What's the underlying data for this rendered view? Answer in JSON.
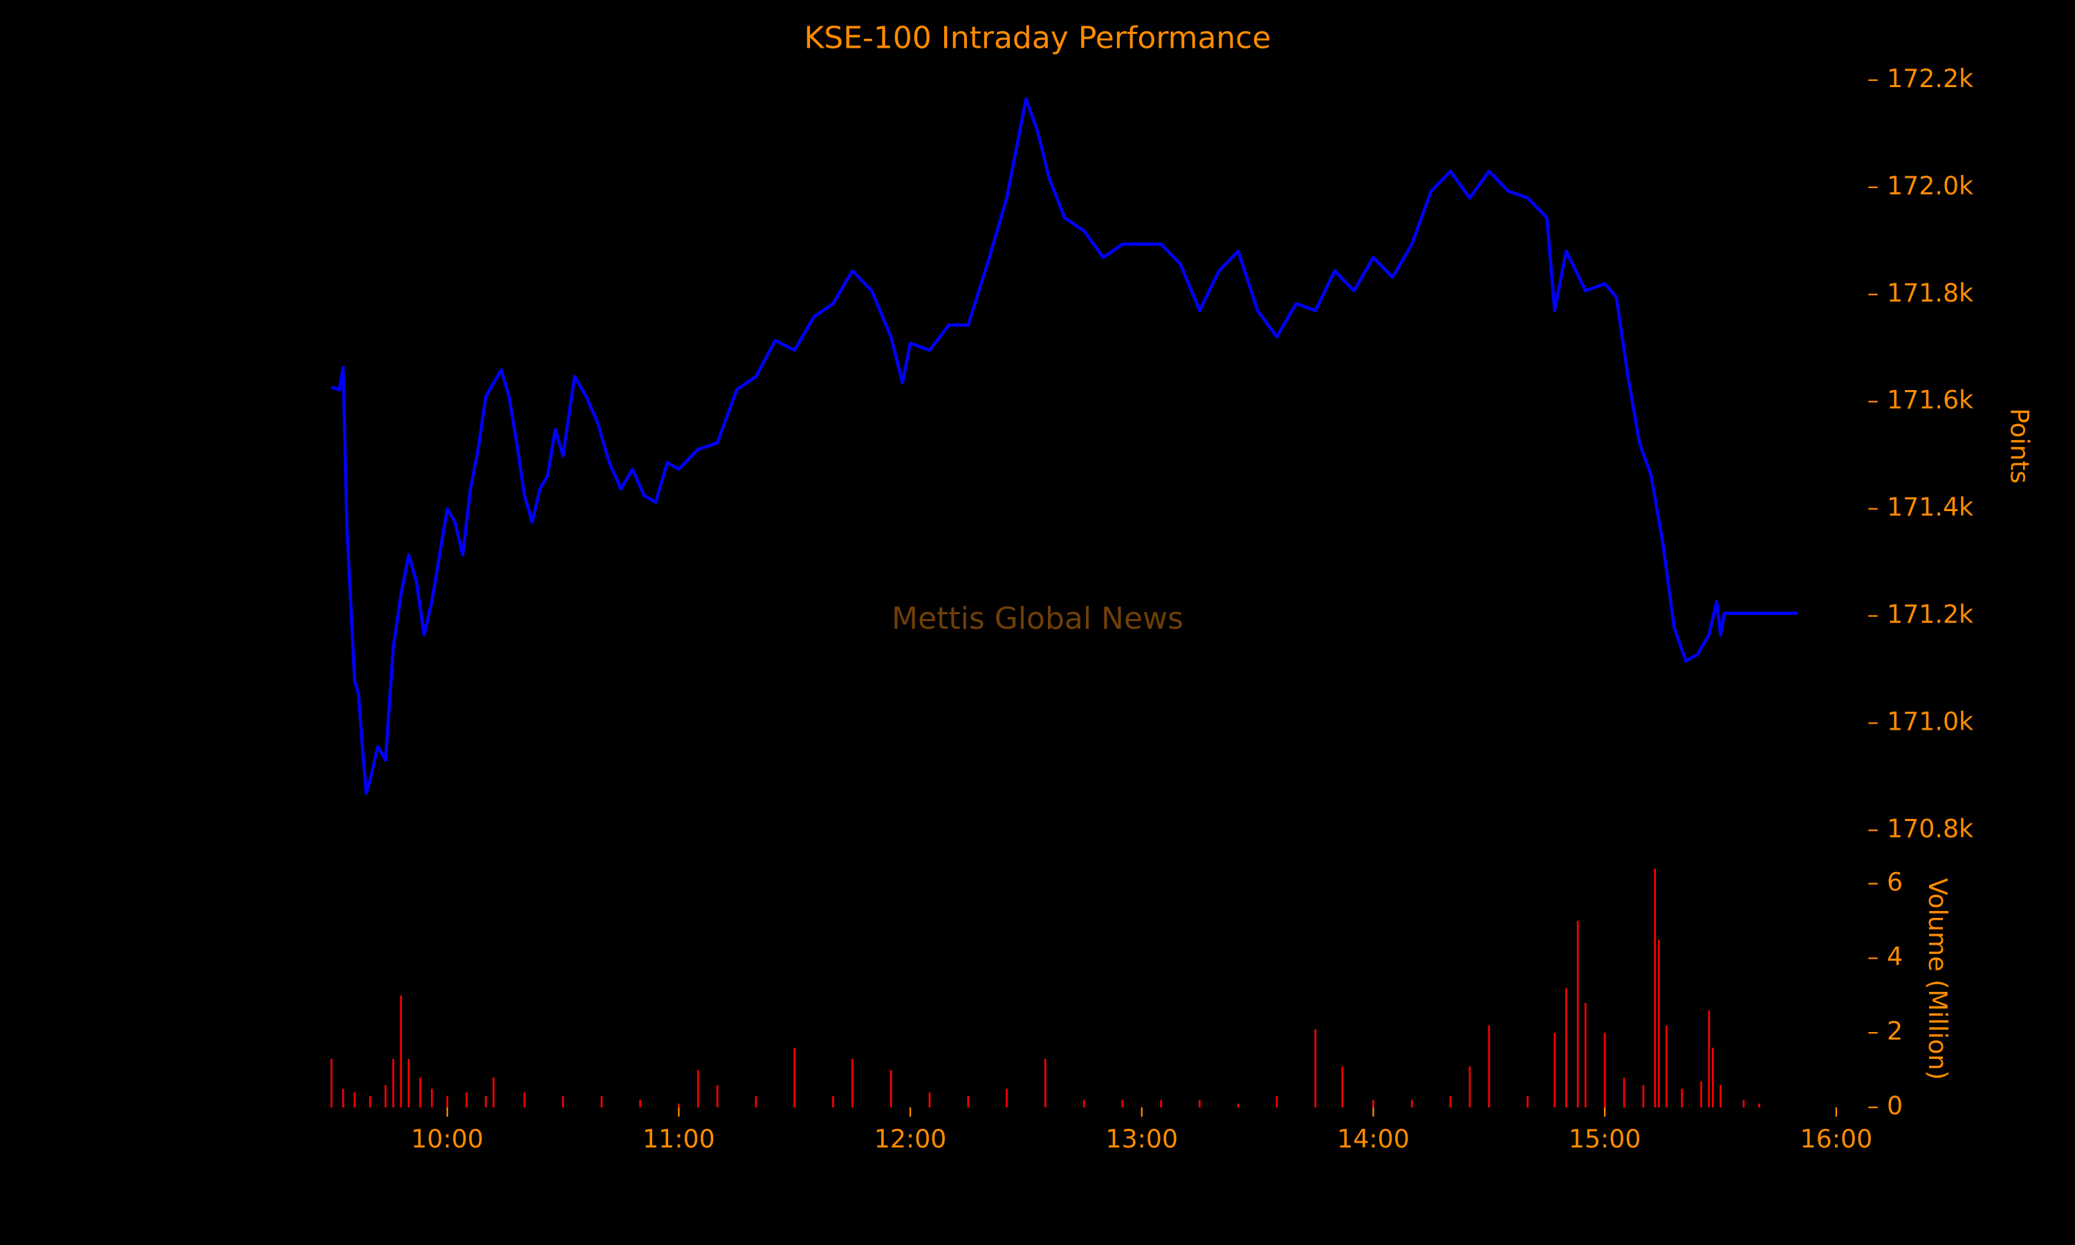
{
  "chart_data": [
    {
      "type": "line",
      "title": "KSE-100 Intraday Performance",
      "ylabel": "Points",
      "watermark": "Mettis Global News",
      "color": "#0000ff",
      "xlim": [
        "09:11",
        "16:09"
      ],
      "ylim": [
        170794,
        172236
      ],
      "yticks": [
        {
          "value": 170800,
          "label": "170.8k"
        },
        {
          "value": 171000,
          "label": "171.0k"
        },
        {
          "value": 171200,
          "label": "171.2k"
        },
        {
          "value": 171400,
          "label": "171.4k"
        },
        {
          "value": 171600,
          "label": "171.6k"
        },
        {
          "value": 171800,
          "label": "171.8k"
        },
        {
          "value": 172000,
          "label": "172.0k"
        },
        {
          "value": 172200,
          "label": "172.2k"
        }
      ],
      "x": [
        "09:30",
        "09:32",
        "09:33",
        "09:34",
        "09:36",
        "09:37",
        "09:38",
        "09:39",
        "09:40",
        "09:42",
        "09:44",
        "09:46",
        "09:48",
        "09:50",
        "09:52",
        "09:54",
        "09:56",
        "09:58",
        "10:00",
        "10:02",
        "10:04",
        "10:06",
        "10:08",
        "10:10",
        "10:12",
        "10:14",
        "10:16",
        "10:18",
        "10:20",
        "10:22",
        "10:24",
        "10:26",
        "10:28",
        "10:30",
        "10:33",
        "10:36",
        "10:39",
        "10:42",
        "10:45",
        "10:48",
        "10:51",
        "10:54",
        "10:57",
        "11:00",
        "11:05",
        "11:10",
        "11:15",
        "11:20",
        "11:25",
        "11:30",
        "11:35",
        "11:40",
        "11:45",
        "11:50",
        "11:55",
        "11:58",
        "12:00",
        "12:05",
        "12:10",
        "12:15",
        "12:20",
        "12:25",
        "12:30",
        "12:33",
        "12:36",
        "12:40",
        "12:45",
        "12:50",
        "12:55",
        "13:00",
        "13:05",
        "13:10",
        "13:15",
        "13:20",
        "13:25",
        "13:30",
        "13:35",
        "13:40",
        "13:45",
        "13:50",
        "13:55",
        "14:00",
        "14:05",
        "14:10",
        "14:15",
        "14:20",
        "14:25",
        "14:30",
        "14:35",
        "14:40",
        "14:45",
        "14:47",
        "14:50",
        "14:55",
        "15:00",
        "15:03",
        "15:06",
        "15:09",
        "15:12",
        "15:15",
        "15:18",
        "15:21",
        "15:24",
        "15:27",
        "15:29",
        "15:30",
        "15:31",
        "15:50"
      ],
      "values": [
        171627,
        171622,
        171664,
        171363,
        171079,
        171054,
        170956,
        170869,
        170894,
        170956,
        170931,
        171141,
        171240,
        171314,
        171264,
        171165,
        171227,
        171314,
        171400,
        171375,
        171314,
        171437,
        171511,
        171610,
        171635,
        171659,
        171610,
        171523,
        171425,
        171375,
        171437,
        171462,
        171548,
        171499,
        171647,
        171610,
        171560,
        171486,
        171437,
        171474,
        171425,
        171412,
        171486,
        171474,
        171511,
        171523,
        171622,
        171647,
        171714,
        171696,
        171758,
        171783,
        171844,
        171807,
        171721,
        171635,
        171709,
        171696,
        171743,
        171743,
        171857,
        171980,
        172165,
        172104,
        172017,
        171943,
        171919,
        171869,
        171894,
        171894,
        171894,
        171857,
        171770,
        171844,
        171881,
        171770,
        171721,
        171783,
        171770,
        171844,
        171807,
        171869,
        171832,
        171894,
        171993,
        172030,
        171980,
        172030,
        171993,
        171980,
        171943,
        171770,
        171881,
        171807,
        171820,
        171795,
        171647,
        171523,
        171462,
        171338,
        171178,
        171116,
        171128,
        171165,
        171227,
        171165,
        171205,
        171205
      ]
    },
    {
      "type": "bar",
      "ylabel": "Volume (Million)",
      "color": "#ff0000",
      "xlim": [
        "09:11",
        "16:09"
      ],
      "xticks": [
        "10:00",
        "11:00",
        "12:00",
        "13:00",
        "14:00",
        "15:00",
        "16:00"
      ],
      "ylim": [
        0,
        6.6
      ],
      "yticks": [
        0,
        2,
        4,
        6
      ],
      "x": [
        "09:30",
        "09:33",
        "09:36",
        "09:40",
        "09:44",
        "09:46",
        "09:48",
        "09:50",
        "09:53",
        "09:56",
        "10:00",
        "10:05",
        "10:10",
        "10:12",
        "10:20",
        "10:30",
        "10:40",
        "10:50",
        "11:00",
        "11:05",
        "11:10",
        "11:20",
        "11:30",
        "11:40",
        "11:45",
        "11:55",
        "12:05",
        "12:15",
        "12:25",
        "12:35",
        "12:45",
        "12:55",
        "13:05",
        "13:15",
        "13:25",
        "13:35",
        "13:45",
        "13:52",
        "14:00",
        "14:10",
        "14:20",
        "14:25",
        "14:30",
        "14:40",
        "14:47",
        "14:50",
        "14:53",
        "14:55",
        "15:00",
        "15:05",
        "15:10",
        "15:13",
        "15:14",
        "15:16",
        "15:20",
        "15:25",
        "15:27",
        "15:28",
        "15:30",
        "15:36",
        "15:40"
      ],
      "values": [
        1.3,
        0.5,
        0.4,
        0.3,
        0.6,
        1.3,
        3.0,
        1.3,
        0.8,
        0.5,
        0.3,
        0.4,
        0.3,
        0.8,
        0.4,
        0.3,
        0.3,
        0.2,
        0.1,
        1.0,
        0.6,
        0.3,
        1.6,
        0.3,
        1.3,
        1.0,
        0.4,
        0.3,
        0.5,
        1.3,
        0.2,
        0.2,
        0.2,
        0.2,
        0.1,
        0.3,
        2.1,
        1.1,
        0.2,
        0.2,
        0.3,
        1.1,
        2.2,
        0.3,
        2.0,
        3.2,
        5.0,
        2.8,
        2.0,
        0.8,
        0.6,
        6.4,
        4.5,
        2.2,
        0.5,
        0.7,
        2.6,
        1.6,
        0.6,
        0.2,
        0.1
      ]
    }
  ]
}
